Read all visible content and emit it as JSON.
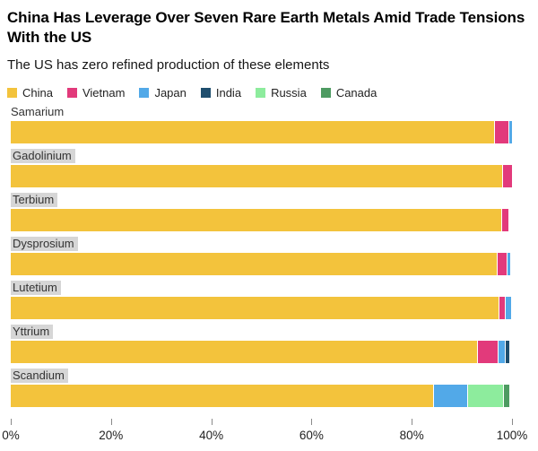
{
  "header": {
    "title": "China Has Leverage Over Seven Rare Earth Metals Amid Trade Tensions With the US",
    "subtitle": "The US has zero refined production of these elements"
  },
  "legend": [
    {
      "label": "China",
      "color": "#f3c33c"
    },
    {
      "label": "Vietnam",
      "color": "#e23a7b"
    },
    {
      "label": "Japan",
      "color": "#52a9e8"
    },
    {
      "label": "India",
      "color": "#1f4e6e"
    },
    {
      "label": "Russia",
      "color": "#8dec9d"
    },
    {
      "label": "Canada",
      "color": "#4e9b62"
    }
  ],
  "chart_data": {
    "type": "bar",
    "orientation": "horizontal",
    "stacked": true,
    "unit": "% share of refined production",
    "title": "China Has Leverage Over Seven Rare Earth Metals Amid Trade Tensions With the US",
    "subtitle": "The US has zero refined production of these elements",
    "categories": [
      "Samarium",
      "Gadolinium",
      "Terbium",
      "Dysprosium",
      "Lutetium",
      "Yttrium",
      "Scandium"
    ],
    "series": [
      {
        "name": "China",
        "values": [
          96.4,
          98.1,
          97.8,
          96.9,
          97.3,
          93.0,
          84.2
        ]
      },
      {
        "name": "Vietnam",
        "values": [
          2.7,
          1.7,
          1.3,
          1.9,
          1.1,
          4.0,
          0
        ]
      },
      {
        "name": "Japan",
        "values": [
          0.5,
          0,
          0,
          0.5,
          1.0,
          1.2,
          6.6
        ]
      },
      {
        "name": "India",
        "values": [
          0,
          0,
          0,
          0,
          0,
          0.7,
          0
        ]
      },
      {
        "name": "Russia",
        "values": [
          0,
          0,
          0,
          0,
          0,
          0,
          7.0
        ]
      },
      {
        "name": "Canada",
        "values": [
          0,
          0,
          0,
          0,
          0,
          0,
          1.2
        ]
      }
    ],
    "xlabel": "",
    "ylabel": "",
    "xlim": [
      0,
      100
    ],
    "x_ticks": [
      {
        "value": 0,
        "label": "0%"
      },
      {
        "value": 20,
        "label": "20%"
      },
      {
        "value": 40,
        "label": "40%"
      },
      {
        "value": 60,
        "label": "60%"
      },
      {
        "value": 80,
        "label": "80%"
      },
      {
        "value": 100,
        "label": "100%"
      }
    ],
    "grid": false,
    "legend_position": "top",
    "highlighted_categories": [
      "Gadolinium",
      "Terbium",
      "Dysprosium",
      "Lutetium",
      "Yttrium",
      "Scandium"
    ]
  }
}
